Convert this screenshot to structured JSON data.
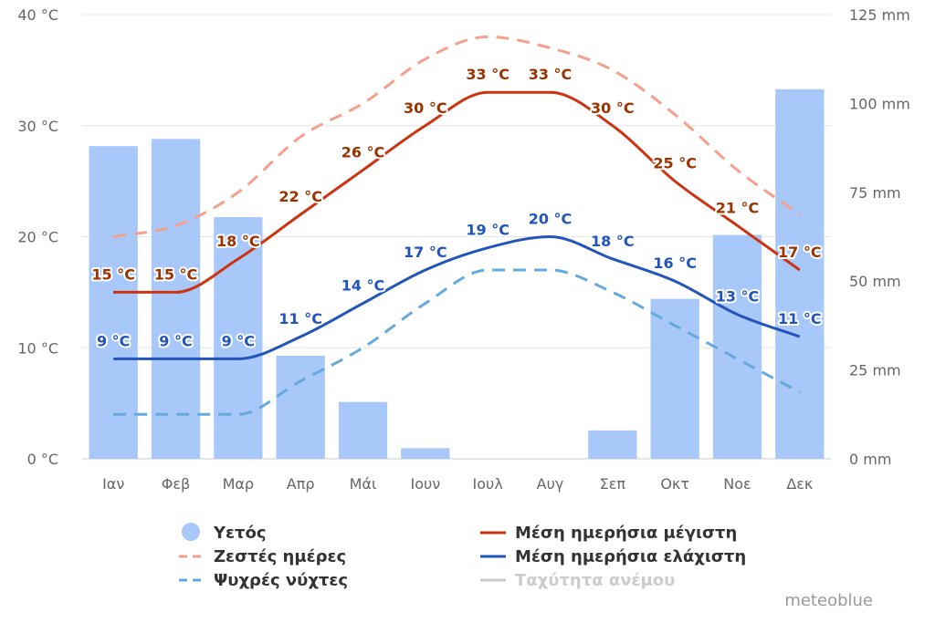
{
  "chart_data": {
    "type": "bar",
    "categories": [
      "Ιαν",
      "Φεβ",
      "Μαρ",
      "Απρ",
      "Μάι",
      "Ιουν",
      "Ιουλ",
      "Αυγ",
      "Σεπ",
      "Οκτ",
      "Νοε",
      "Δεκ"
    ],
    "left_axis": {
      "unit": "°C",
      "ticks": [
        "0 °C",
        "10 °C",
        "20 °C",
        "30 °C",
        "40 °C"
      ],
      "range": [
        0,
        40
      ]
    },
    "right_axis": {
      "unit": "mm",
      "ticks": [
        "0 mm",
        "25 mm",
        "50 mm",
        "75 mm",
        "100 mm",
        "125 mm"
      ],
      "range": [
        0,
        125
      ]
    },
    "series": [
      {
        "name": "Υετός",
        "kind": "bar",
        "axis": "right",
        "color": "#a8c8fa",
        "values": [
          88,
          90,
          68,
          29,
          16,
          3,
          0,
          0,
          8,
          45,
          63,
          104
        ]
      },
      {
        "name": "Μέση ημερήσια μέγιστη",
        "kind": "line",
        "axis": "left",
        "color": "#cc3311",
        "label_color": "#993300",
        "values": [
          15,
          15,
          18,
          22,
          26,
          30,
          33,
          33,
          30,
          25,
          21,
          17
        ],
        "labels": [
          "15 °C",
          "15 °C",
          "18 °C",
          "22 °C",
          "26 °C",
          "30 °C",
          "33 °C",
          "33 °C",
          "30 °C",
          "25 °C",
          "21 °C",
          "17 °C"
        ]
      },
      {
        "name": "Μέση ημερήσια ελάχιστη",
        "kind": "line",
        "axis": "left",
        "color": "#2255bb",
        "label_color": "#2255bb",
        "values": [
          9,
          9,
          9,
          11,
          14,
          17,
          19,
          20,
          18,
          16,
          13,
          11
        ],
        "labels": [
          "9 °C",
          "9 °C",
          "9 °C",
          "11 °C",
          "14 °C",
          "17 °C",
          "19 °C",
          "20 °C",
          "18 °C",
          "16 °C",
          "13 °C",
          "11 °C"
        ]
      },
      {
        "name": "Ζεστές ημέρες",
        "kind": "dashed-line",
        "axis": "left",
        "color": "#f4a08c",
        "values": [
          20,
          21,
          24,
          29,
          32,
          36,
          38,
          37,
          35,
          31,
          26,
          22
        ]
      },
      {
        "name": "Ψυχρές νύχτες",
        "kind": "dashed-line",
        "axis": "left",
        "color": "#66aadd",
        "values": [
          4,
          4,
          4,
          7,
          10,
          14,
          17,
          17,
          15,
          12,
          9,
          6
        ]
      }
    ],
    "legend": [
      {
        "label": "Υετός",
        "symbol": "circle",
        "color": "#a8c8fa"
      },
      {
        "label": "Μέση ημερήσια μέγιστη",
        "symbol": "line",
        "color": "#cc3311"
      },
      {
        "label": "Ζεστές ημέρες",
        "symbol": "dash",
        "color": "#f4a08c"
      },
      {
        "label": "Μέση ημερήσια ελάχιστη",
        "symbol": "line",
        "color": "#2255bb"
      },
      {
        "label": "Ψυχρές νύχτες",
        "symbol": "dash",
        "color": "#66aadd"
      },
      {
        "label": "Ταχύτητα ανέμου",
        "symbol": "line",
        "color": "#cccccc",
        "disabled": true
      }
    ],
    "legend_position": "bottom",
    "grid": true,
    "credit": "meteoblue"
  }
}
